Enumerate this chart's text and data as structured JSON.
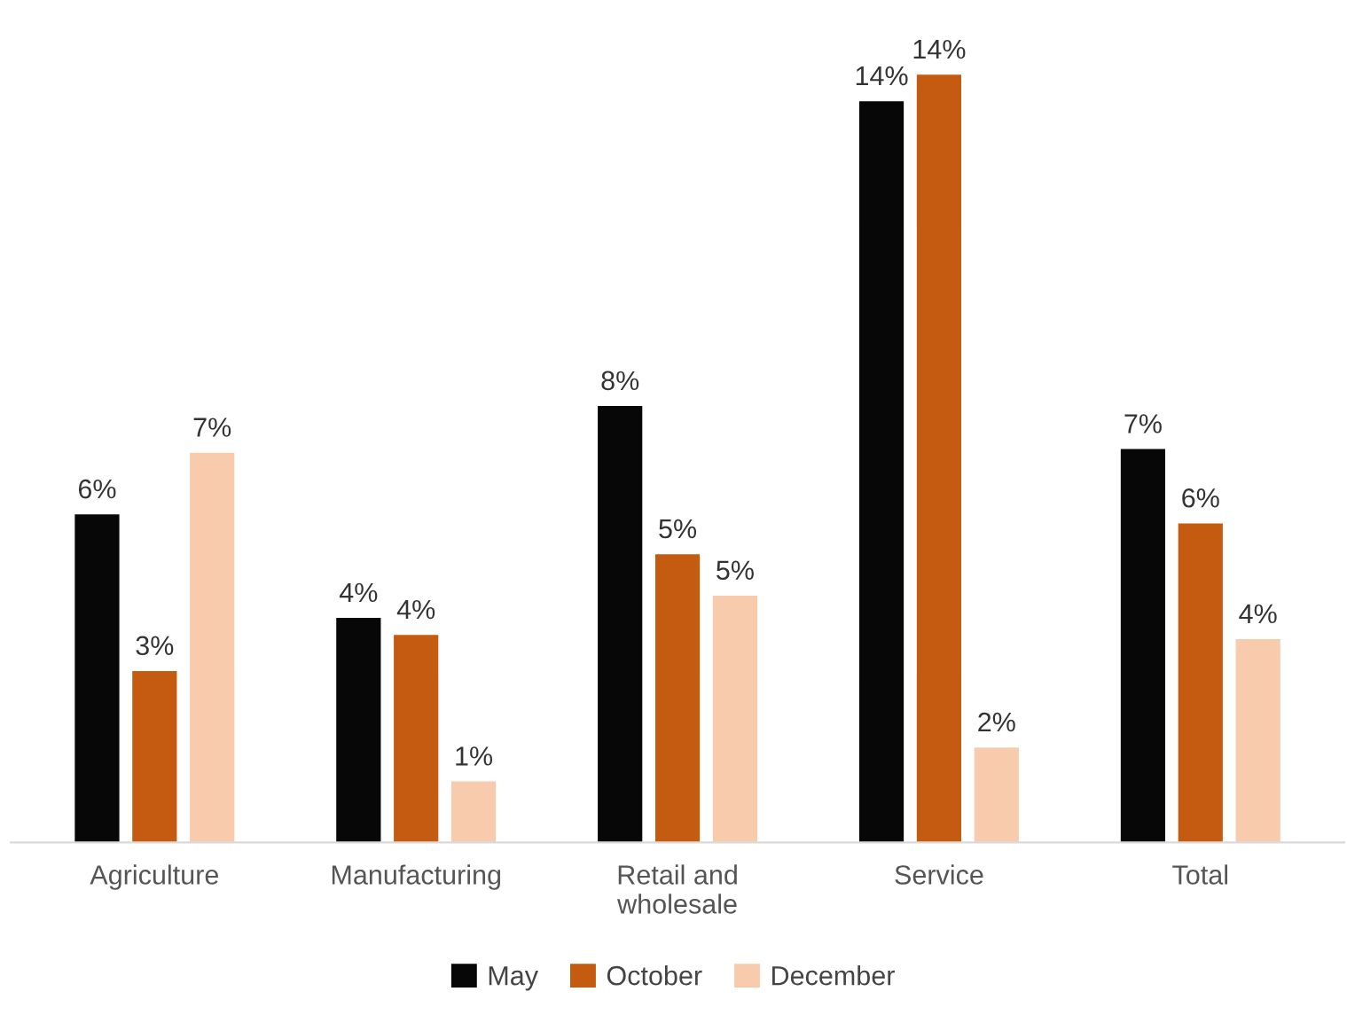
{
  "chart_data": {
    "type": "bar",
    "categories": [
      "Agriculture",
      "Manufacturing",
      "Retail and\nwholesale",
      "Service",
      "Total"
    ],
    "series": [
      {
        "name": "May",
        "color": "#070707",
        "values": [
          6.19,
          4.24,
          8.23,
          13.97,
          7.42
        ],
        "value_labels": [
          "6%",
          "4%",
          "8%",
          "14%",
          "7%"
        ]
      },
      {
        "name": "October",
        "color": "#c55a11",
        "values": [
          3.24,
          3.92,
          5.44,
          14.47,
          6.02
        ],
        "value_labels": [
          "3%",
          "4%",
          "5%",
          "14%",
          "6%"
        ]
      },
      {
        "name": "December",
        "color": "#f8cbad",
        "values": [
          7.35,
          1.16,
          4.66,
          1.8,
          3.84
        ],
        "value_labels": [
          "7%",
          "1%",
          "5%",
          "2%",
          "4%"
        ]
      }
    ],
    "legend": "bottom",
    "grid": false
  }
}
